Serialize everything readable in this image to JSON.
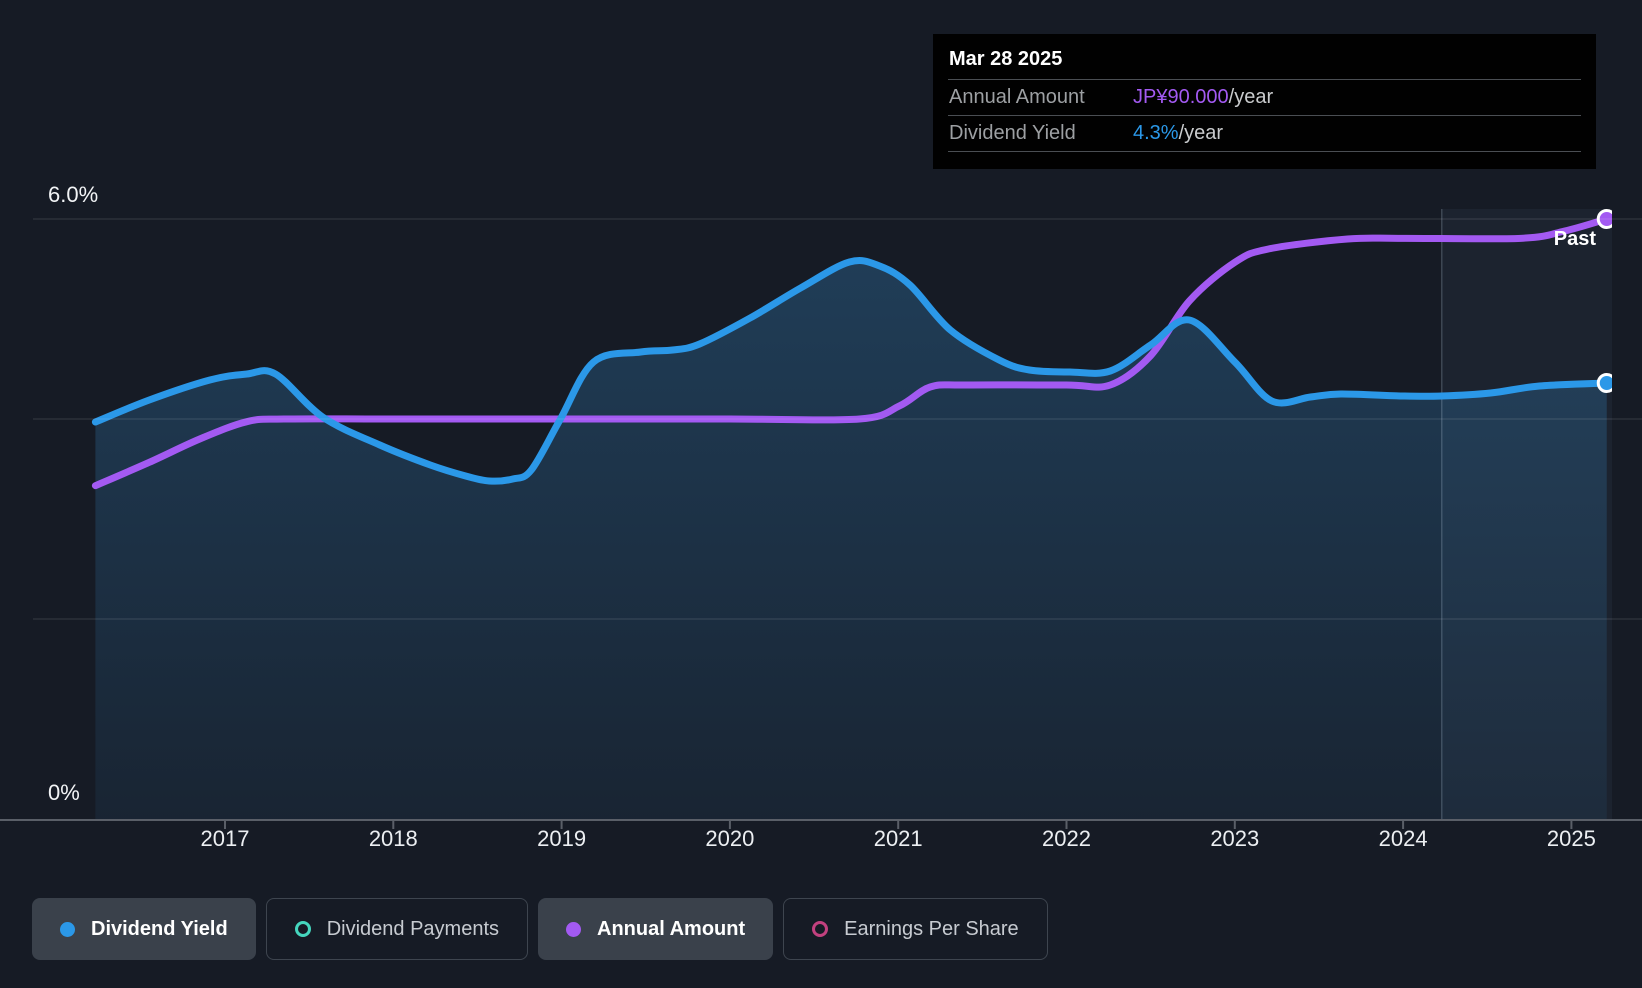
{
  "colors": {
    "background": "#161B25",
    "dividend_yield_blue": "#2B98E8",
    "annual_amount_purple": "#A35AF2",
    "dividend_payments_teal": "#45D6BE",
    "earnings_per_share_pink": "#C2417F",
    "grid": "rgba(255,255,255,0.14)",
    "axis": "#5A5F68",
    "area_fill_top": "rgba(56,146,212,0.30)",
    "area_fill_bottom": "rgba(56,146,212,0.08)",
    "past_band": "rgba(162,198,234,0.05)",
    "past_divider": "rgba(197,219,240,0.32)"
  },
  "tooltip": {
    "date": "Mar 28 2025",
    "rows": [
      {
        "label": "Annual Amount",
        "value": "JP¥90.000",
        "suffix": "/year",
        "color": "#A35AF2"
      },
      {
        "label": "Dividend Yield",
        "value": "4.3%",
        "suffix": "/year",
        "color": "#2B98E8"
      }
    ]
  },
  "axis": {
    "y_top_label": "6.0%",
    "y_bottom_label": "0%",
    "x_ticks": [
      "2017",
      "2018",
      "2019",
      "2020",
      "2021",
      "2022",
      "2023",
      "2024",
      "2025"
    ]
  },
  "past_label": "Past",
  "legend": [
    {
      "label": "Dividend Yield",
      "marker": "filled",
      "color": "#2B98E8",
      "active": true
    },
    {
      "label": "Dividend Payments",
      "marker": "open",
      "color": "#45D6BE",
      "active": false
    },
    {
      "label": "Annual Amount",
      "marker": "filled",
      "color": "#A35AF2",
      "active": true
    },
    {
      "label": "Earnings Per Share",
      "marker": "open",
      "color": "#C2417F",
      "active": false
    }
  ],
  "chart_data": {
    "type": "line",
    "title": "Dividend history (yield and annual amount)",
    "x_range": [
      2016.23,
      2025.21
    ],
    "y_range_percent": [
      0,
      6.0
    ],
    "amount_axis_max_jpy": 90,
    "grid_percent": [
      6,
      4,
      2
    ],
    "past_divider_year": 2024.23,
    "legend_position": "bottom",
    "series": [
      {
        "name": "Dividend Yield",
        "unit": "percent",
        "color": "#2B98E8",
        "area": true,
        "end_marker": true,
        "points": [
          [
            2016.23,
            3.97
          ],
          [
            2016.55,
            4.19
          ],
          [
            2016.91,
            4.39
          ],
          [
            2017.13,
            4.45
          ],
          [
            2017.3,
            4.45
          ],
          [
            2017.58,
            4.02
          ],
          [
            2017.92,
            3.74
          ],
          [
            2018.22,
            3.54
          ],
          [
            2018.43,
            3.43
          ],
          [
            2018.57,
            3.38
          ],
          [
            2018.71,
            3.4
          ],
          [
            2018.82,
            3.49
          ],
          [
            2018.99,
            3.99
          ],
          [
            2019.19,
            4.57
          ],
          [
            2019.47,
            4.67
          ],
          [
            2019.66,
            4.69
          ],
          [
            2019.82,
            4.75
          ],
          [
            2020.12,
            5.01
          ],
          [
            2020.42,
            5.31
          ],
          [
            2020.71,
            5.57
          ],
          [
            2020.89,
            5.53
          ],
          [
            2021.07,
            5.34
          ],
          [
            2021.31,
            4.89
          ],
          [
            2021.6,
            4.59
          ],
          [
            2021.78,
            4.49
          ],
          [
            2022.02,
            4.47
          ],
          [
            2022.26,
            4.48
          ],
          [
            2022.5,
            4.74
          ],
          [
            2022.73,
            4.99
          ],
          [
            2023.0,
            4.57
          ],
          [
            2023.22,
            4.18
          ],
          [
            2023.45,
            4.22
          ],
          [
            2023.63,
            4.25
          ],
          [
            2024.0,
            4.23
          ],
          [
            2024.23,
            4.23
          ],
          [
            2024.52,
            4.26
          ],
          [
            2024.81,
            4.33
          ],
          [
            2025.21,
            4.36
          ]
        ]
      },
      {
        "name": "Annual Amount",
        "unit": "jpy_per_year",
        "value_scale_note": "JP¥90/year aligns with 6.0% on the percent axis",
        "color": "#A35AF2",
        "area": false,
        "end_marker": true,
        "points": [
          [
            2016.23,
            50.0
          ],
          [
            2016.55,
            53.5
          ],
          [
            2016.85,
            57.0
          ],
          [
            2017.13,
            59.6
          ],
          [
            2017.35,
            60.0
          ],
          [
            2018.0,
            60.0
          ],
          [
            2019.0,
            60.0
          ],
          [
            2020.0,
            60.0
          ],
          [
            2020.77,
            60.0
          ],
          [
            2021.01,
            62.0
          ],
          [
            2021.19,
            64.8
          ],
          [
            2021.4,
            65.1
          ],
          [
            2022.0,
            65.1
          ],
          [
            2022.26,
            65.1
          ],
          [
            2022.5,
            69.5
          ],
          [
            2022.73,
            77.7
          ],
          [
            2023.0,
            83.5
          ],
          [
            2023.2,
            85.5
          ],
          [
            2023.67,
            87.0
          ],
          [
            2024.0,
            87.1
          ],
          [
            2024.7,
            87.1
          ],
          [
            2024.96,
            88.2
          ],
          [
            2025.21,
            90.0
          ]
        ]
      }
    ]
  }
}
